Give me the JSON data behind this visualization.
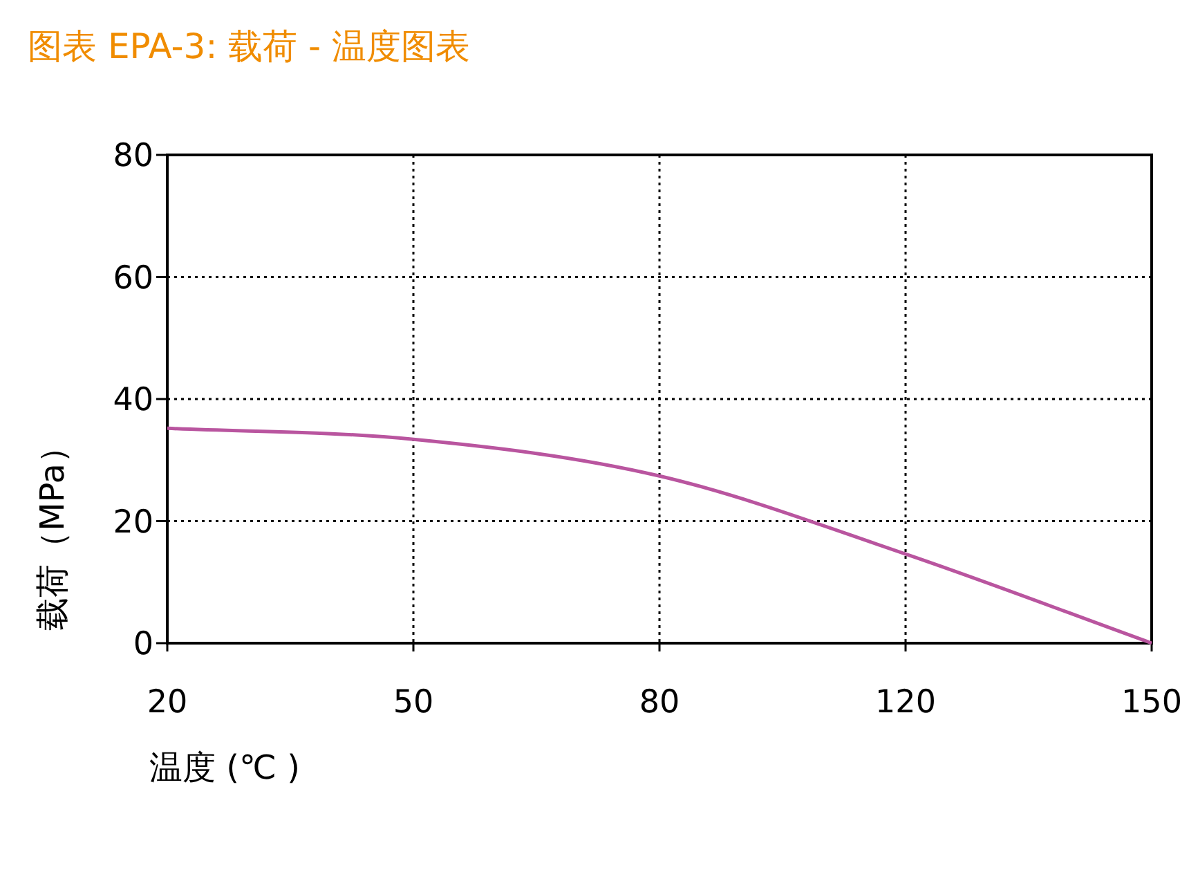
{
  "chart_data": {
    "type": "line",
    "title": "图表 EPA-3: 载荷 - 温度图表",
    "xlabel": "温度 (℃ )",
    "ylabel": "载荷（MPa）",
    "categories": [
      "20",
      "50",
      "80",
      "120",
      "150"
    ],
    "series": [
      {
        "color": "#b9559f",
        "values": [
          35.2,
          33.4,
          27.4,
          14.6,
          0
        ]
      }
    ],
    "ylim": [
      0,
      80
    ],
    "yticks": [
      0,
      20,
      40,
      60,
      80
    ],
    "grid": true,
    "marker": "none",
    "line_style": "solid"
  }
}
